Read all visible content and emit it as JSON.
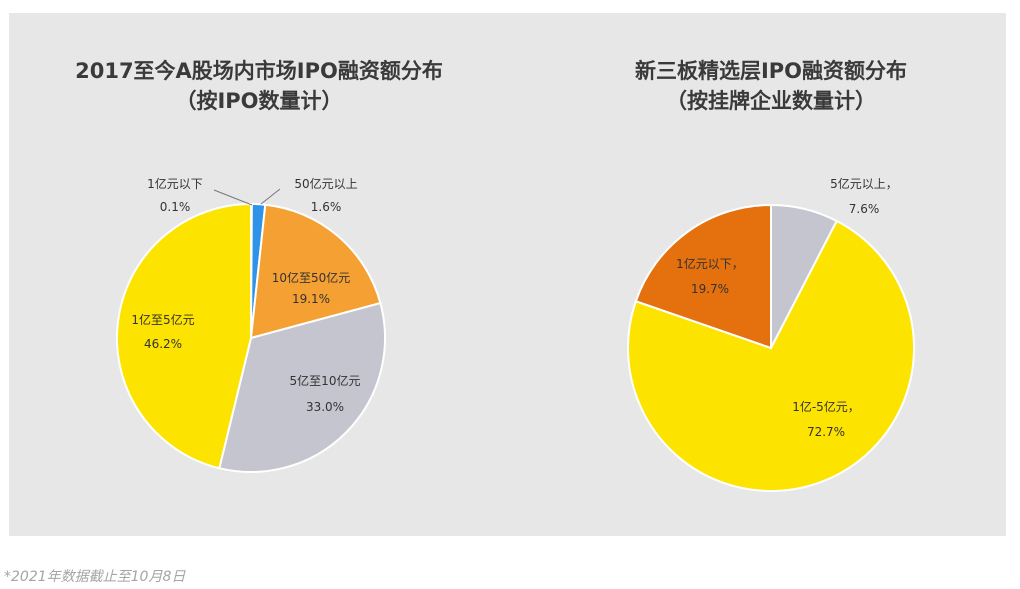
{
  "chart_data": [
    {
      "type": "pie",
      "title": "2017至今A股场内市场IPO融资额分布",
      "subtitle": "（按IPO数量计）",
      "slices": [
        {
          "label": "1亿元以下",
          "value_label": "0.1%",
          "value": 0.1,
          "color": "#cfcfcf"
        },
        {
          "label": "50亿元以上",
          "value_label": "1.6%",
          "value": 1.6,
          "color": "#2f93e8"
        },
        {
          "label": "10亿至50亿元",
          "value_label": "19.1%",
          "value": 19.1,
          "color": "#f5a032"
        },
        {
          "label": "5亿至10亿元",
          "value_label": "33.0%",
          "value": 33.0,
          "color": "#c5c5cf"
        },
        {
          "label": "1亿至5亿元",
          "value_label": "46.2%",
          "value": 46.2,
          "color": "#fde300"
        }
      ]
    },
    {
      "type": "pie",
      "title": "新三板精选层IPO融资额分布",
      "subtitle": "（按挂牌企业数量计）",
      "slices": [
        {
          "label": "5亿元以上，",
          "value_label": "7.6%",
          "value": 7.6,
          "color": "#c5c5cf"
        },
        {
          "label": "1亿-5亿元，",
          "value_label": "72.7%",
          "value": 72.7,
          "color": "#fde300"
        },
        {
          "label": "1亿元以下，",
          "value_label": "19.7%",
          "value": 19.7,
          "color": "#e4700e"
        }
      ]
    }
  ],
  "footnote": "*2021年数据截止至10月8日"
}
